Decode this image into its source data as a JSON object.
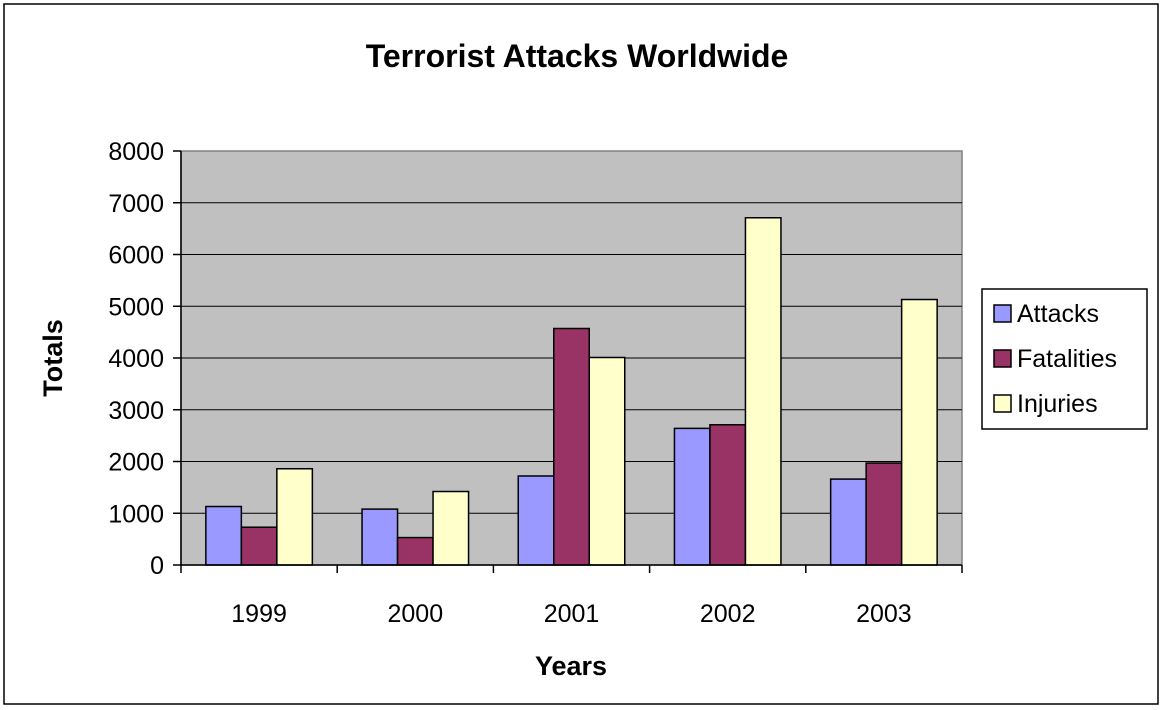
{
  "chart_data": {
    "type": "bar",
    "title": "Terrorist Attacks Worldwide",
    "xlabel": "Years",
    "ylabel": "Totals",
    "categories": [
      "1999",
      "2000",
      "2001",
      "2002",
      "2003"
    ],
    "series": [
      {
        "name": "Attacks",
        "values": [
          1130,
          1080,
          1720,
          2640,
          1660
        ],
        "color": "#9999ff"
      },
      {
        "name": "Fatalities",
        "values": [
          730,
          530,
          4570,
          2710,
          1970
        ],
        "color": "#993366"
      },
      {
        "name": "Injuries",
        "values": [
          1860,
          1420,
          4010,
          6710,
          5130
        ],
        "color": "#ffffcc"
      }
    ],
    "ylim": [
      0,
      8000
    ],
    "yticks": [
      "0",
      "1000",
      "2000",
      "3000",
      "4000",
      "5000",
      "6000",
      "7000",
      "8000"
    ],
    "grid": true,
    "plot_background": "#c0c0c0",
    "legend_position": "right"
  }
}
